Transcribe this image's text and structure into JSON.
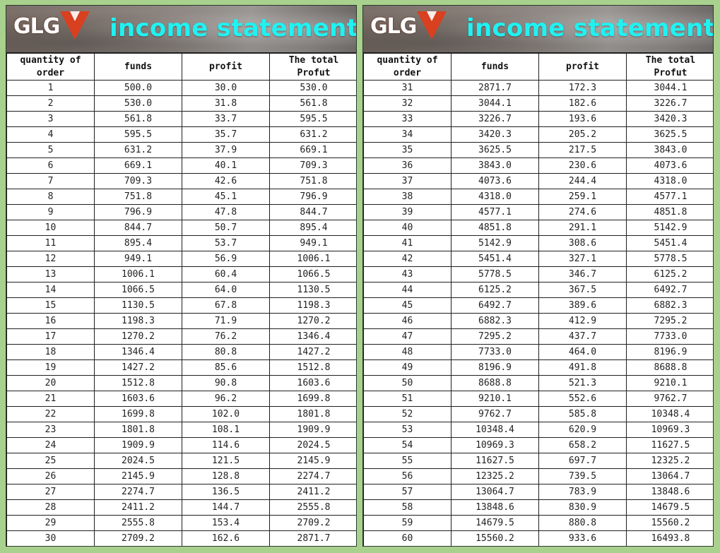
{
  "colors": {
    "background": "#a9d18e",
    "banner_title": "#20f2f2",
    "profit": "#27b24a",
    "total": "#e01f1f",
    "logo_red": "#d8401f"
  },
  "banner": {
    "logo": "GLG",
    "logo_icon": "orange-triangle-logo-mark",
    "title": "income statement"
  },
  "columns": [
    "quantity of order",
    "funds",
    "profit",
    "The total Profut"
  ],
  "left_rows": [
    [
      "1",
      "500.0",
      "30.0",
      "530.0"
    ],
    [
      "2",
      "530.0",
      "31.8",
      "561.8"
    ],
    [
      "3",
      "561.8",
      "33.7",
      "595.5"
    ],
    [
      "4",
      "595.5",
      "35.7",
      "631.2"
    ],
    [
      "5",
      "631.2",
      "37.9",
      "669.1"
    ],
    [
      "6",
      "669.1",
      "40.1",
      "709.3"
    ],
    [
      "7",
      "709.3",
      "42.6",
      "751.8"
    ],
    [
      "8",
      "751.8",
      "45.1",
      "796.9"
    ],
    [
      "9",
      "796.9",
      "47.8",
      "844.7"
    ],
    [
      "10",
      "844.7",
      "50.7",
      "895.4"
    ],
    [
      "11",
      "895.4",
      "53.7",
      "949.1"
    ],
    [
      "12",
      "949.1",
      "56.9",
      "1006.1"
    ],
    [
      "13",
      "1006.1",
      "60.4",
      "1066.5"
    ],
    [
      "14",
      "1066.5",
      "64.0",
      "1130.5"
    ],
    [
      "15",
      "1130.5",
      "67.8",
      "1198.3"
    ],
    [
      "16",
      "1198.3",
      "71.9",
      "1270.2"
    ],
    [
      "17",
      "1270.2",
      "76.2",
      "1346.4"
    ],
    [
      "18",
      "1346.4",
      "80.8",
      "1427.2"
    ],
    [
      "19",
      "1427.2",
      "85.6",
      "1512.8"
    ],
    [
      "20",
      "1512.8",
      "90.8",
      "1603.6"
    ],
    [
      "21",
      "1603.6",
      "96.2",
      "1699.8"
    ],
    [
      "22",
      "1699.8",
      "102.0",
      "1801.8"
    ],
    [
      "23",
      "1801.8",
      "108.1",
      "1909.9"
    ],
    [
      "24",
      "1909.9",
      "114.6",
      "2024.5"
    ],
    [
      "25",
      "2024.5",
      "121.5",
      "2145.9"
    ],
    [
      "26",
      "2145.9",
      "128.8",
      "2274.7"
    ],
    [
      "27",
      "2274.7",
      "136.5",
      "2411.2"
    ],
    [
      "28",
      "2411.2",
      "144.7",
      "2555.8"
    ],
    [
      "29",
      "2555.8",
      "153.4",
      "2709.2"
    ],
    [
      "30",
      "2709.2",
      "162.6",
      "2871.7"
    ]
  ],
  "right_rows": [
    [
      "31",
      "2871.7",
      "172.3",
      "3044.1"
    ],
    [
      "32",
      "3044.1",
      "182.6",
      "3226.7"
    ],
    [
      "33",
      "3226.7",
      "193.6",
      "3420.3"
    ],
    [
      "34",
      "3420.3",
      "205.2",
      "3625.5"
    ],
    [
      "35",
      "3625.5",
      "217.5",
      "3843.0"
    ],
    [
      "36",
      "3843.0",
      "230.6",
      "4073.6"
    ],
    [
      "37",
      "4073.6",
      "244.4",
      "4318.0"
    ],
    [
      "38",
      "4318.0",
      "259.1",
      "4577.1"
    ],
    [
      "39",
      "4577.1",
      "274.6",
      "4851.8"
    ],
    [
      "40",
      "4851.8",
      "291.1",
      "5142.9"
    ],
    [
      "41",
      "5142.9",
      "308.6",
      "5451.4"
    ],
    [
      "42",
      "5451.4",
      "327.1",
      "5778.5"
    ],
    [
      "43",
      "5778.5",
      "346.7",
      "6125.2"
    ],
    [
      "44",
      "6125.2",
      "367.5",
      "6492.7"
    ],
    [
      "45",
      "6492.7",
      "389.6",
      "6882.3"
    ],
    [
      "46",
      "6882.3",
      "412.9",
      "7295.2"
    ],
    [
      "47",
      "7295.2",
      "437.7",
      "7733.0"
    ],
    [
      "48",
      "7733.0",
      "464.0",
      "8196.9"
    ],
    [
      "49",
      "8196.9",
      "491.8",
      "8688.8"
    ],
    [
      "50",
      "8688.8",
      "521.3",
      "9210.1"
    ],
    [
      "51",
      "9210.1",
      "552.6",
      "9762.7"
    ],
    [
      "52",
      "9762.7",
      "585.8",
      "10348.4"
    ],
    [
      "53",
      "10348.4",
      "620.9",
      "10969.3"
    ],
    [
      "54",
      "10969.3",
      "658.2",
      "11627.5"
    ],
    [
      "55",
      "11627.5",
      "697.7",
      "12325.2"
    ],
    [
      "56",
      "12325.2",
      "739.5",
      "13064.7"
    ],
    [
      "57",
      "13064.7",
      "783.9",
      "13848.6"
    ],
    [
      "58",
      "13848.6",
      "830.9",
      "14679.5"
    ],
    [
      "59",
      "14679.5",
      "880.8",
      "15560.2"
    ],
    [
      "60",
      "15560.2",
      "933.6",
      "16493.8"
    ]
  ]
}
